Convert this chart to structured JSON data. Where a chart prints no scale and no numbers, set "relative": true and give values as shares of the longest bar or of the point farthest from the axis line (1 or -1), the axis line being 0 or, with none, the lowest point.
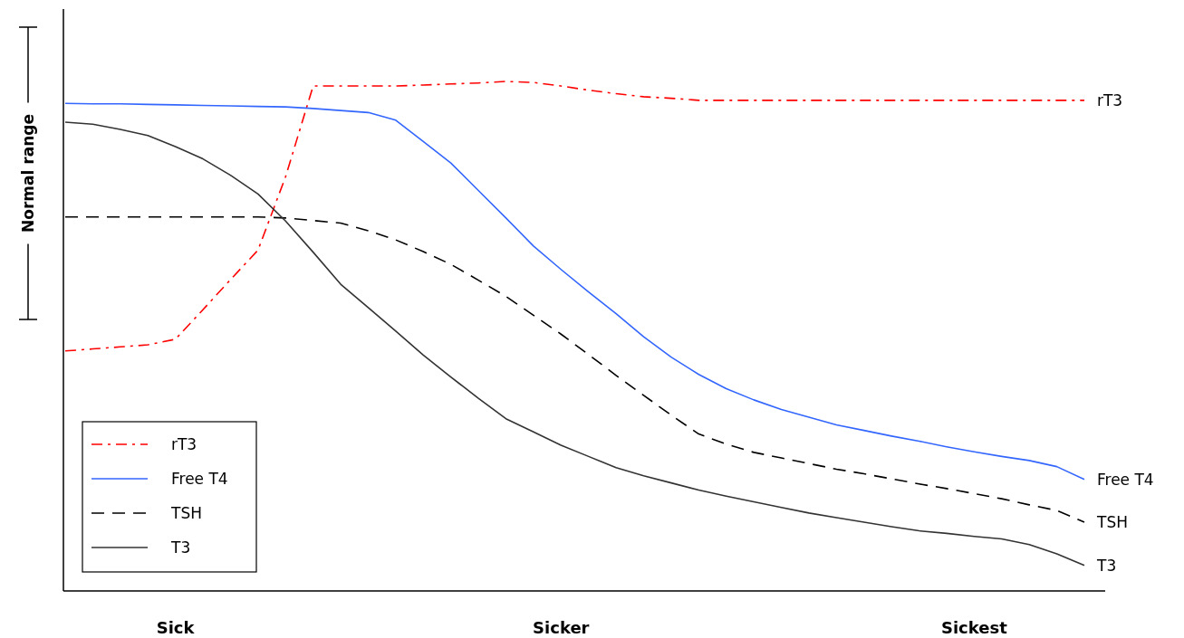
{
  "chart_data": {
    "type": "line",
    "relative": true,
    "categories": [
      null,
      null,
      null,
      null,
      "Sick",
      null,
      null,
      null,
      null,
      null,
      null,
      null,
      null,
      null,
      null,
      null,
      null,
      null,
      "Sicker",
      null,
      null,
      null,
      null,
      null,
      null,
      null,
      null,
      null,
      null,
      null,
      null,
      null,
      null,
      "Sickest",
      null,
      null,
      null,
      null
    ],
    "series": [
      {
        "name": "rT3",
        "color": "#ff0000",
        "line_style": "dashdot",
        "values": [
          0.471,
          0.475,
          0.479,
          0.483,
          0.494,
          0.552,
          0.611,
          0.669,
          0.813,
          0.991,
          0.991,
          0.991,
          0.991,
          0.993,
          0.995,
          0.997,
          1,
          0.998,
          0.991,
          0.983,
          0.976,
          0.97,
          0.967,
          0.963,
          0.963,
          0.963,
          0.963,
          0.963,
          0.963,
          0.963,
          0.963,
          0.963,
          0.963,
          0.963,
          0.963,
          0.963,
          0.963,
          0.963
        ]
      },
      {
        "name": "Free T4",
        "color": "#3366ff",
        "line_style": "solid",
        "values": [
          0.957,
          0.956,
          0.956,
          0.955,
          0.954,
          0.953,
          0.952,
          0.951,
          0.95,
          0.947,
          0.943,
          0.939,
          0.924,
          0.882,
          0.84,
          0.786,
          0.732,
          0.677,
          0.631,
          0.587,
          0.544,
          0.499,
          0.459,
          0.425,
          0.397,
          0.375,
          0.356,
          0.341,
          0.326,
          0.315,
          0.304,
          0.294,
          0.283,
          0.273,
          0.264,
          0.256,
          0.244,
          0.219
        ]
      },
      {
        "name": "TSH",
        "color": "#000000",
        "line_style": "dashed",
        "values": [
          0.734,
          0.734,
          0.734,
          0.734,
          0.734,
          0.734,
          0.734,
          0.734,
          0.732,
          0.727,
          0.722,
          0.707,
          0.689,
          0.666,
          0.641,
          0.61,
          0.578,
          0.541,
          0.504,
          0.464,
          0.423,
          0.384,
          0.345,
          0.308,
          0.288,
          0.272,
          0.261,
          0.25,
          0.239,
          0.23,
          0.22,
          0.21,
          0.201,
          0.191,
          0.181,
          0.169,
          0.158,
          0.135
        ]
      },
      {
        "name": "T3",
        "color": "#333333",
        "line_style": "solid",
        "values": [
          0.92,
          0.916,
          0.906,
          0.894,
          0.872,
          0.848,
          0.816,
          0.779,
          0.726,
          0.665,
          0.602,
          0.556,
          0.51,
          0.463,
          0.42,
          0.378,
          0.338,
          0.312,
          0.286,
          0.264,
          0.242,
          0.226,
          0.212,
          0.198,
          0.186,
          0.175,
          0.164,
          0.153,
          0.144,
          0.135,
          0.126,
          0.118,
          0.113,
          0.107,
          0.102,
          0.091,
          0.073,
          0.05
        ]
      }
    ],
    "annotations": [
      "Normal range"
    ],
    "legend": "bottom left"
  }
}
